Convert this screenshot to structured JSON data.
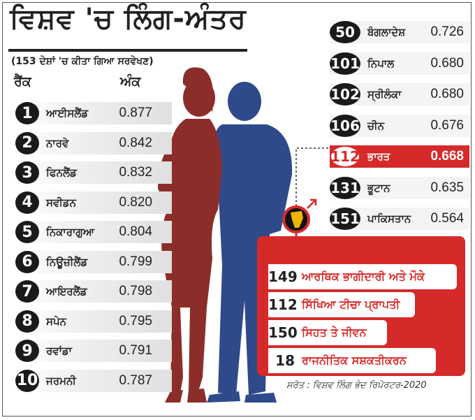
{
  "title": "ਵਿਸ਼ਵ 'ਚ ਲਿੰਗ-ਅੰਤਰ",
  "subtitle": "(153 ਦੇਸ਼ਾਂ 'ਚ ਕੀਤਾ ਗਿਆ ਸਰਵੇਖਣ)",
  "headers": {
    "rank": "ਰੈਂਕ",
    "score": "ਅੰਕ"
  },
  "top_countries": [
    {
      "rank": "1",
      "country": "ਆਈਸਲੈਂਡ",
      "score": "0.877"
    },
    {
      "rank": "2",
      "country": "ਨਾਰਵੇ",
      "score": "0.842"
    },
    {
      "rank": "3",
      "country": "ਫਿਨਲੈਂਡ",
      "score": "0.832"
    },
    {
      "rank": "4",
      "country": "ਸਵੀਡਨ",
      "score": "0.820"
    },
    {
      "rank": "5",
      "country": "ਨਿਕਾਰਾਗੁਆ",
      "score": "0.804"
    },
    {
      "rank": "6",
      "country": "ਨਿਊਜ਼ੀਲੈਂਡ",
      "score": "0.799"
    },
    {
      "rank": "7",
      "country": "ਆਇਰਲੈਂਡ",
      "score": "0.798"
    },
    {
      "rank": "8",
      "country": "ਸਪੇਨ",
      "score": "0.795"
    },
    {
      "rank": "9",
      "country": "ਰਵਾਂਡਾ",
      "score": "0.791"
    },
    {
      "rank": "10",
      "country": "ਜਰਮਨੀ",
      "score": "0.787"
    }
  ],
  "asia_countries": [
    {
      "rank": "50",
      "country": "ਬੰਗਲਾਦੇਸ਼",
      "score": "0.726",
      "highlight": false
    },
    {
      "rank": "101",
      "country": "ਨਿਪਾਲ",
      "score": "0.680",
      "highlight": false
    },
    {
      "rank": "102",
      "country": "ਸ੍ਰੀਲੰਕਾ",
      "score": "0.680",
      "highlight": false
    },
    {
      "rank": "106",
      "country": "ਚੀਨ",
      "score": "0.676",
      "highlight": false
    },
    {
      "rank": "112",
      "country": "ਭਾਰਤ",
      "score": "0.668",
      "highlight": true
    },
    {
      "rank": "131",
      "country": "ਭੂਟਾਨ",
      "score": "0.635",
      "highlight": false
    },
    {
      "rank": "151",
      "country": "ਪਾਕਿਸਤਾਨ",
      "score": "0.564",
      "highlight": false
    }
  ],
  "india_breakdown": [
    {
      "rank": "149",
      "label": "ਆਰਥਿਕ ਭਾਗੀਦਾਰੀ ਅਤੇ ਮੌਕੇ"
    },
    {
      "rank": "112",
      "label": "ਸਿੱਖਿਆ ਟੀਚਾ ਪ੍ਰਾਪਤੀ"
    },
    {
      "rank": "150",
      "label": "ਸਿਹਤ ਤੇ ਜੀਵਨ"
    },
    {
      "rank": "18",
      "label": "ਰਾਜਨੀਤਿਕ ਸਸ਼ਕਤੀਕਰਨ"
    }
  ],
  "source": "ਸਰੋਤ : ਵਿਸ਼ਵ ਲਿੰਗ ਭੇਦ ਰਿਪੋਰਟਰ-2020",
  "colors": {
    "highlight": "#d62a2a",
    "woman": "#8b2e2a",
    "man": "#2f4a8a"
  },
  "icons": [
    "woman-silhouette",
    "man-silhouette",
    "india-map-icon",
    "male-symbol-icon",
    "female-symbol-icon"
  ]
}
